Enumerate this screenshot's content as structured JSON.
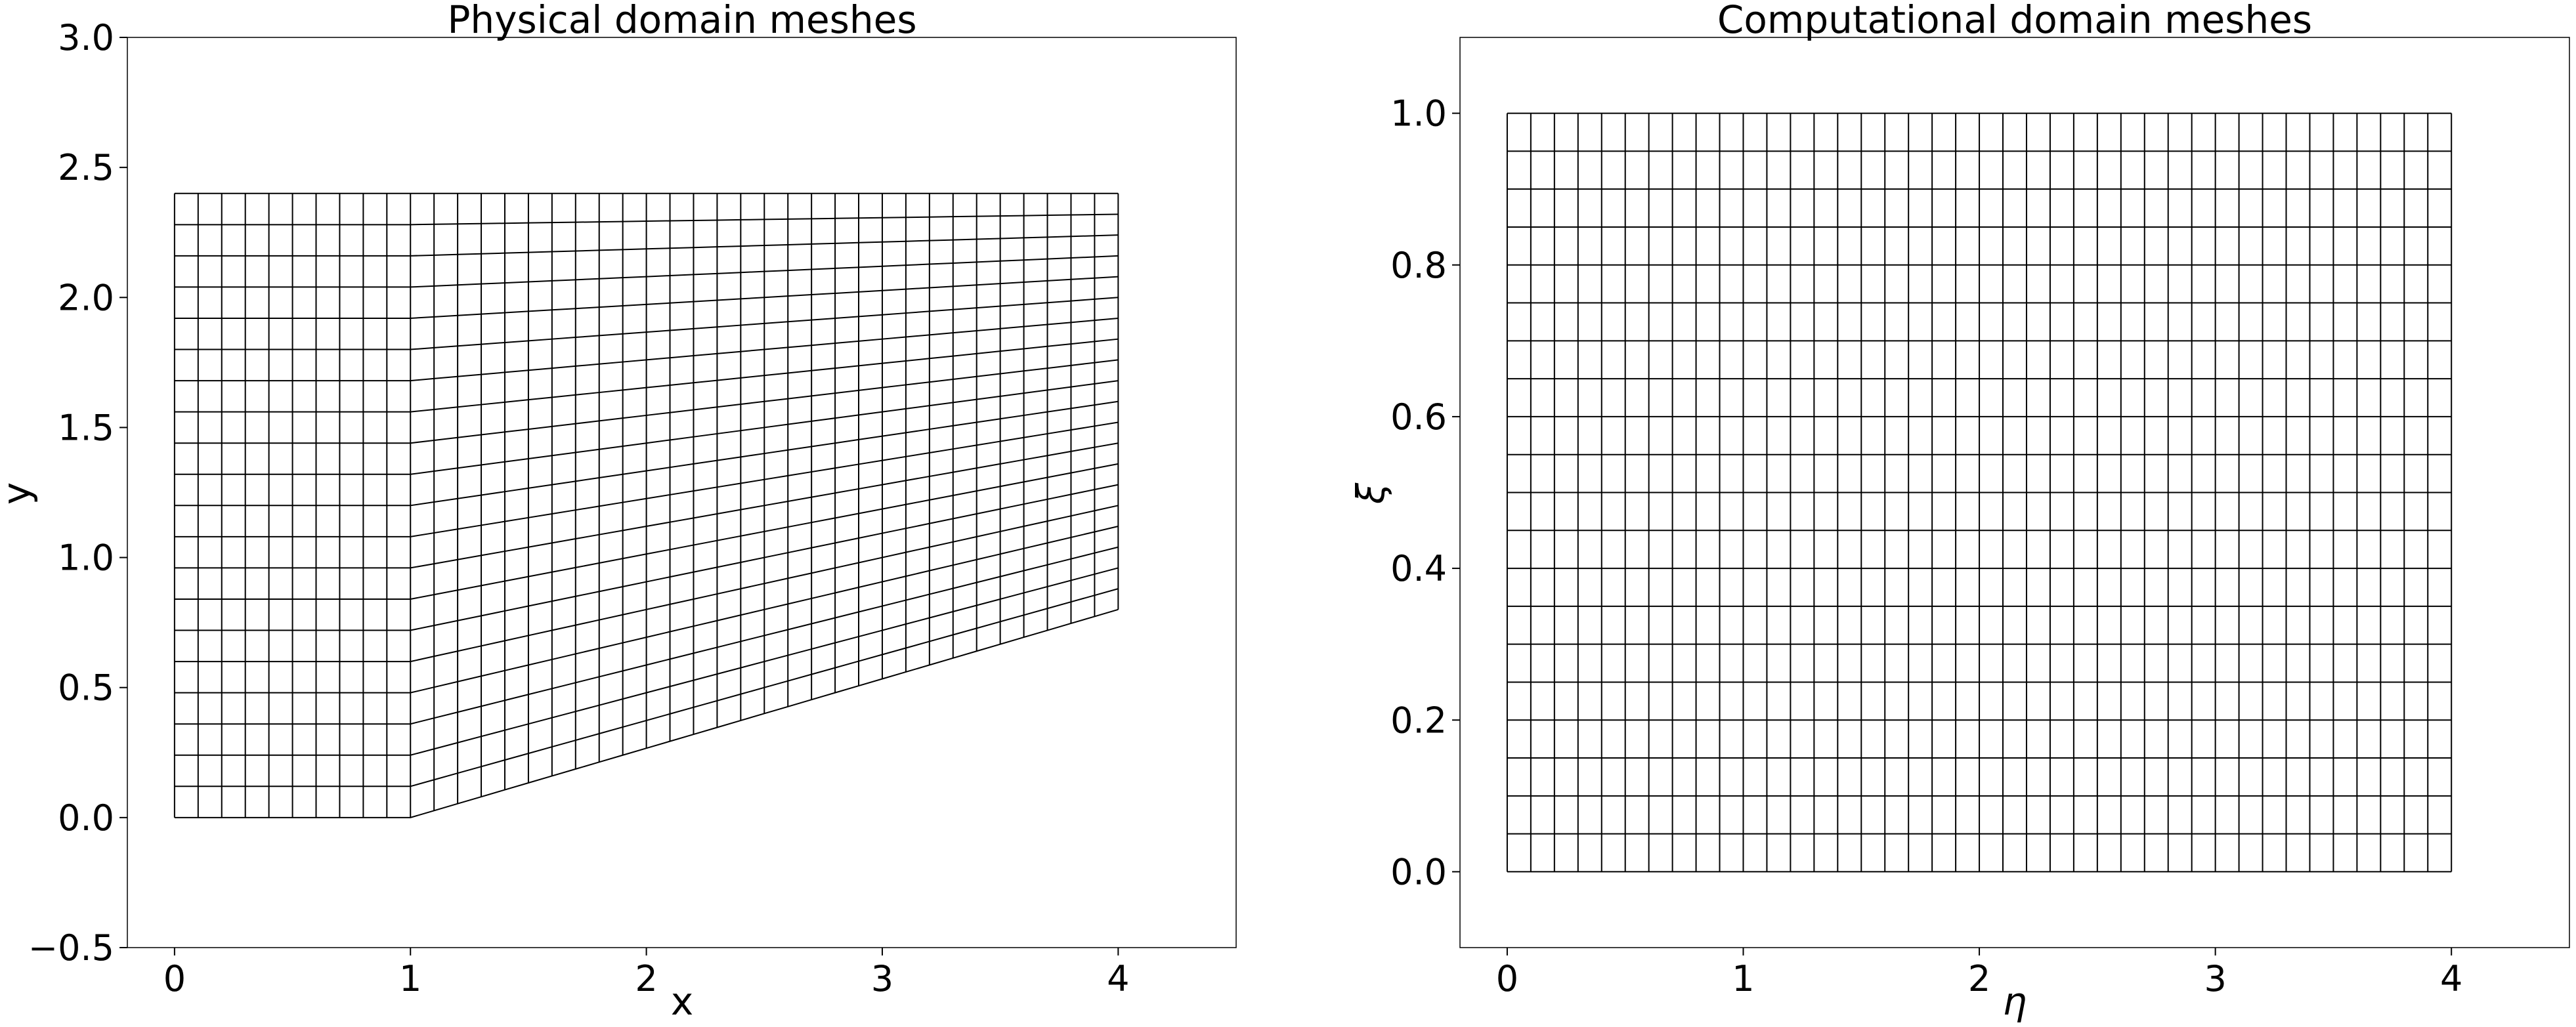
{
  "chart_data": [
    {
      "type": "mesh",
      "title": "Physical domain meshes",
      "xlabel": "x",
      "ylabel": "y",
      "xlim": [
        -0.2,
        4.5
      ],
      "ylim": [
        -0.5,
        3.0
      ],
      "xticks": [
        0,
        1,
        2,
        3,
        4
      ],
      "xtick_labels": [
        "0",
        "1",
        "2",
        "3",
        "4"
      ],
      "yticks": [
        -0.5,
        0.0,
        0.5,
        1.0,
        1.5,
        2.0,
        2.5,
        3.0
      ],
      "ytick_labels": [
        "−0.5",
        "0.0",
        "0.5",
        "1.0",
        "1.5",
        "2.0",
        "2.5",
        "3.0"
      ],
      "grid": false,
      "mesh": {
        "columns": 41,
        "rows": 21,
        "x_range": [
          0,
          4
        ],
        "top_y": 2.4,
        "bottom_profile": {
          "flat_until_x": 1.0,
          "bottom_y_at_flat": 0.0,
          "bottom_y_at_end": 0.8
        }
      }
    },
    {
      "type": "mesh",
      "title": "Computational domain meshes",
      "xlabel": "η",
      "ylabel": "ξ",
      "xlim": [
        -0.2,
        4.5
      ],
      "ylim": [
        -0.1,
        1.1
      ],
      "xticks": [
        0,
        1,
        2,
        3,
        4
      ],
      "xtick_labels": [
        "0",
        "1",
        "2",
        "3",
        "4"
      ],
      "yticks": [
        0.0,
        0.2,
        0.4,
        0.6,
        0.8,
        1.0
      ],
      "ytick_labels": [
        "0.0",
        "0.2",
        "0.4",
        "0.6",
        "0.8",
        "1.0"
      ],
      "grid": false,
      "mesh": {
        "columns": 41,
        "rows": 21,
        "x_range": [
          0,
          4
        ],
        "y_range": [
          0,
          1
        ]
      }
    }
  ]
}
